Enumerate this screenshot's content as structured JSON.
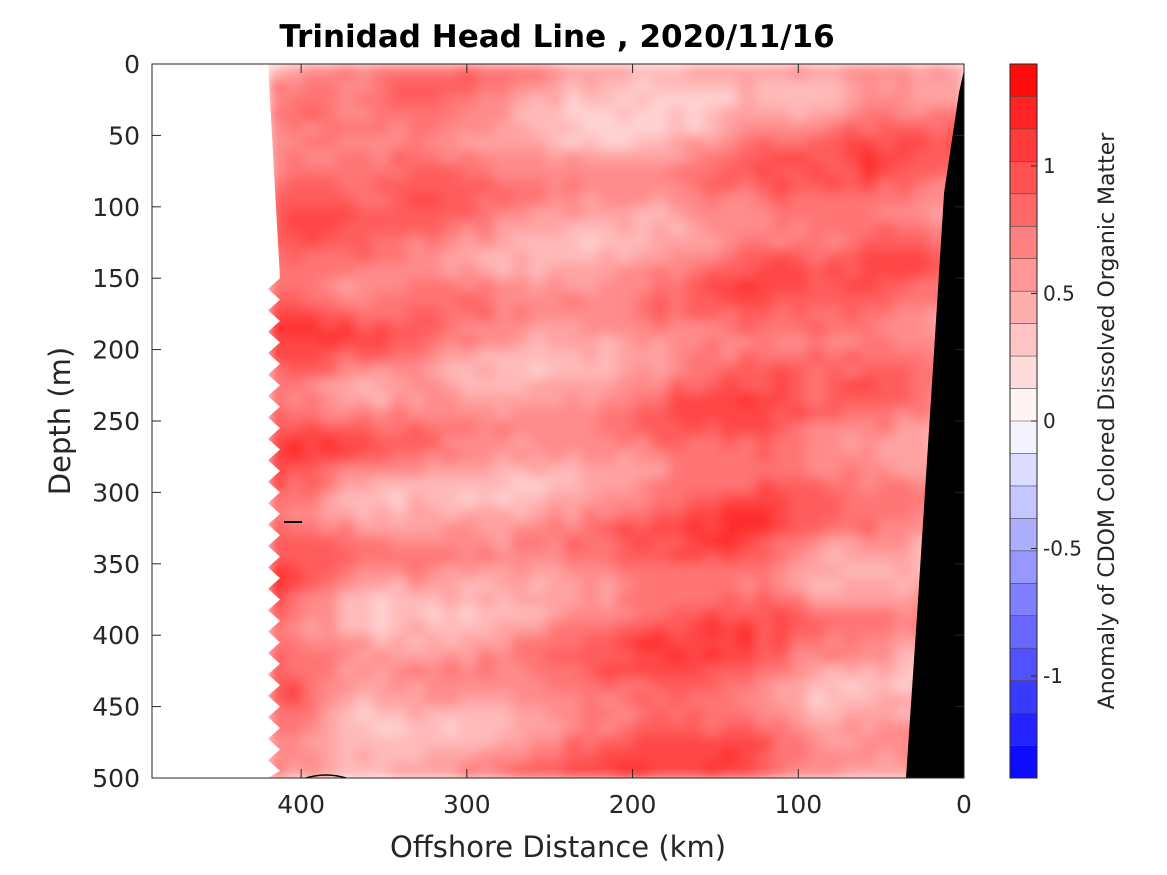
{
  "chart_data": {
    "type": "heatmap",
    "title": "Trinidad Head Line , 2020/11/16",
    "xlabel": "Offshore Distance (km)",
    "ylabel": "Depth (m)",
    "xlim": [
      490,
      0
    ],
    "ylim": [
      0,
      500
    ],
    "x_reversed": true,
    "y_reversed": true,
    "xticks": [
      400,
      300,
      200,
      100,
      0
    ],
    "yticks": [
      0,
      50,
      100,
      150,
      200,
      250,
      300,
      350,
      400,
      450,
      500
    ],
    "data_extent_km": [
      420,
      0
    ],
    "colorbar": {
      "label": "Anomaly of CDOM Colored Dissolved Organic Matter",
      "range": [
        -1.4,
        1.4
      ],
      "ticks": [
        1,
        0.5,
        0,
        -0.5,
        -1
      ],
      "levels": 22,
      "colormap": "blue-white-red",
      "low_color": "#0000ff",
      "mid_color": "#ffffff",
      "high_color": "#ff0000"
    },
    "seafloor_color": "#000000",
    "missing_color": "#ffffff"
  }
}
